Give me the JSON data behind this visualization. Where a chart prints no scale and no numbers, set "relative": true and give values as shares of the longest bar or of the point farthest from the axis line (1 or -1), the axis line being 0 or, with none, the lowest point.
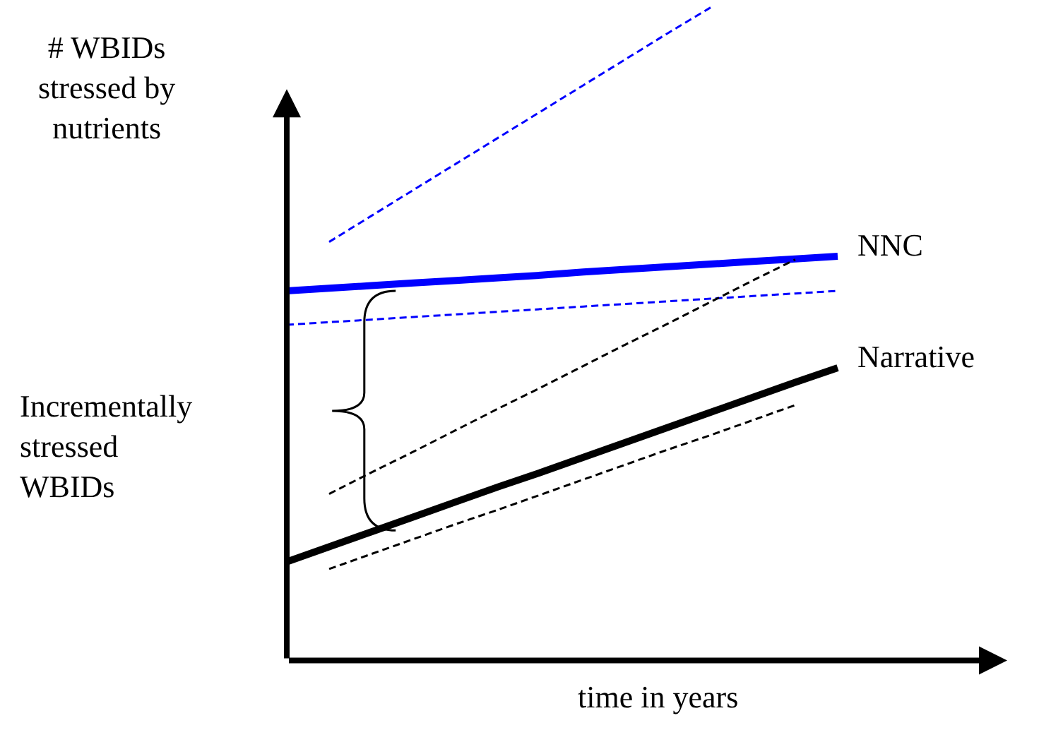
{
  "chart_data": {
    "type": "line",
    "relative": true,
    "xlabel": "time in years",
    "ylabel": "# WBIDs stressed by nutrients",
    "categories": [
      null,
      null,
      null,
      null,
      null,
      null,
      null,
      null,
      null,
      null,
      null,
      null,
      null,
      null
    ],
    "series": [
      {
        "name": "NNC",
        "color": "#0000ff",
        "line_style": "solid",
        "values": [
          0.566,
          0.57,
          0.574,
          0.578,
          0.582,
          0.586,
          0.59,
          0.595,
          0.599,
          0.603,
          0.607,
          0.611,
          0.615,
          0.619
        ]
      },
      {
        "color": "#0000ff",
        "line_style": "dashed",
        "values": [
          0.514,
          0.518,
          0.522,
          0.526,
          0.53,
          0.534,
          0.538,
          0.542,
          0.546,
          0.55,
          0.554,
          0.558,
          0.562,
          0.566
        ]
      },
      {
        "color": "#0000ff",
        "line_style": "dashed",
        "values": [
          null,
          0.641,
          0.681,
          0.721,
          0.761,
          0.801,
          0.841,
          0.881,
          0.921,
          0.961,
          1.0,
          null,
          null,
          null
        ]
      },
      {
        "name": "Narrative",
        "color": "#000000",
        "line_style": "solid",
        "values": [
          0.151,
          0.174,
          0.197,
          0.22,
          0.243,
          0.266,
          0.288,
          0.311,
          0.334,
          0.357,
          0.38,
          0.403,
          0.426,
          0.448
        ]
      },
      {
        "color": "#000000",
        "line_style": "dashed",
        "values": [
          null,
          0.255,
          0.288,
          0.32,
          0.353,
          0.386,
          0.418,
          0.451,
          0.484,
          0.516,
          0.549,
          0.582,
          0.614,
          null
        ]
      },
      {
        "color": "#000000",
        "line_style": "dashed",
        "values": [
          null,
          0.14,
          0.163,
          0.186,
          0.209,
          0.231,
          0.254,
          0.277,
          0.3,
          0.323,
          0.345,
          0.368,
          0.391,
          null
        ]
      }
    ],
    "annotations": [
      "Incrementally stressed WBIDs"
    ]
  }
}
